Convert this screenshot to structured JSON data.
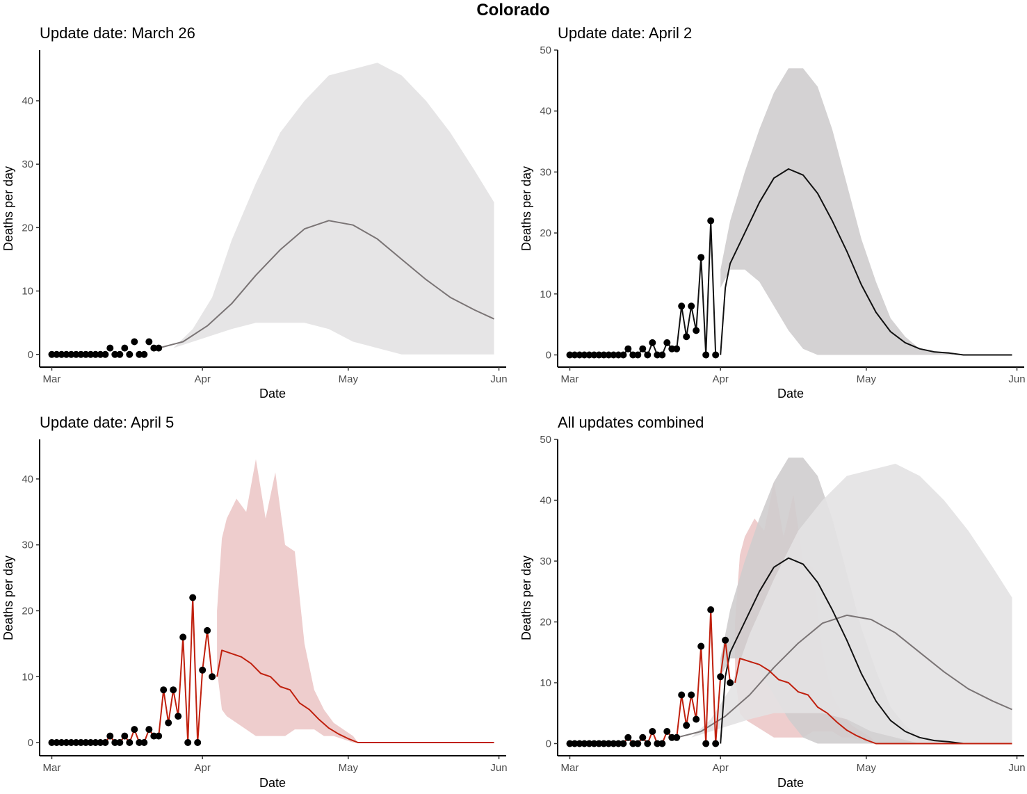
{
  "suptitle": "Colorado",
  "colors": {
    "march26_band": "#e3e2e3",
    "march26_line": "#7a7475",
    "april2_band": "#cfcdce",
    "april2_line": "#111111",
    "april5_band": "#ecc8c8",
    "april5_line": "#c0200e",
    "observed_points": "#000000"
  },
  "chart_data": [
    {
      "type": "line",
      "title": "Update date: March 26",
      "xlabel": "Date",
      "ylabel": "Deaths per day",
      "x_ticks": [
        "Mar",
        "Apr",
        "May",
        "Jun"
      ],
      "y_ticks": [
        0,
        10,
        20,
        30,
        40
      ],
      "ylim": [
        -2,
        48
      ],
      "series": [
        {
          "kind": "band",
          "style": "march26",
          "x": [
            "2020-03-23",
            "2020-03-26",
            "2020-03-30",
            "2020-04-03",
            "2020-04-07",
            "2020-04-12",
            "2020-04-17",
            "2020-04-22",
            "2020-04-27",
            "2020-05-02",
            "2020-05-07",
            "2020-05-12",
            "2020-05-17",
            "2020-05-22",
            "2020-05-27",
            "2020-05-31"
          ],
          "lower": [
            1,
            1,
            2,
            3,
            4,
            5,
            5,
            5,
            4,
            2,
            1,
            0,
            0,
            0,
            0,
            0
          ],
          "upper": [
            1,
            1,
            4,
            9,
            18,
            27,
            35,
            40,
            44,
            45,
            46,
            44,
            40,
            35,
            29,
            24
          ]
        },
        {
          "kind": "line",
          "style": "march26",
          "x": [
            "2020-03-23",
            "2020-03-28",
            "2020-04-02",
            "2020-04-07",
            "2020-04-12",
            "2020-04-17",
            "2020-04-22",
            "2020-04-27",
            "2020-05-02",
            "2020-05-07",
            "2020-05-12",
            "2020-05-17",
            "2020-05-22",
            "2020-05-27",
            "2020-05-31"
          ],
          "y": [
            1.0,
            2.0,
            4.5,
            8.0,
            12.5,
            16.5,
            19.8,
            21.1,
            20.4,
            18.2,
            15.0,
            11.8,
            9.0,
            7.0,
            5.6
          ]
        },
        {
          "kind": "observed",
          "x": [
            "2020-03-01",
            "2020-03-02",
            "2020-03-03",
            "2020-03-04",
            "2020-03-05",
            "2020-03-06",
            "2020-03-07",
            "2020-03-08",
            "2020-03-09",
            "2020-03-10",
            "2020-03-11",
            "2020-03-12",
            "2020-03-13",
            "2020-03-14",
            "2020-03-15",
            "2020-03-16",
            "2020-03-17",
            "2020-03-18",
            "2020-03-19",
            "2020-03-20",
            "2020-03-21",
            "2020-03-22",
            "2020-03-23"
          ],
          "y": [
            0,
            0,
            0,
            0,
            0,
            0,
            0,
            0,
            0,
            0,
            0,
            0,
            1,
            0,
            0,
            1,
            0,
            2,
            0,
            0,
            2,
            1,
            1
          ]
        }
      ]
    },
    {
      "type": "line",
      "title": "Update date: April 2",
      "xlabel": "Date",
      "ylabel": "Deaths per day",
      "x_ticks": [
        "Mar",
        "Apr",
        "May",
        "Jun"
      ],
      "y_ticks": [
        0,
        10,
        20,
        30,
        40,
        50
      ],
      "ylim": [
        -2,
        50
      ],
      "series": [
        {
          "kind": "band",
          "style": "april2",
          "x": [
            "2020-04-01",
            "2020-04-03",
            "2020-04-06",
            "2020-04-09",
            "2020-04-12",
            "2020-04-15",
            "2020-04-18",
            "2020-04-21",
            "2020-04-24",
            "2020-04-27",
            "2020-04-30",
            "2020-05-03",
            "2020-05-06",
            "2020-05-09",
            "2020-05-12",
            "2020-05-15",
            "2020-05-18",
            "2020-05-19"
          ],
          "lower": [
            11,
            14,
            14,
            12,
            8,
            4,
            1,
            0,
            0,
            0,
            0,
            0,
            0,
            0,
            0,
            0,
            0,
            0
          ],
          "upper": [
            14,
            22,
            30,
            37,
            43,
            47,
            47,
            44,
            37,
            28,
            19,
            12,
            6,
            3,
            1,
            0.5,
            0.5,
            0
          ]
        },
        {
          "kind": "line",
          "style": "april2",
          "x": [
            "2020-04-01",
            "2020-04-02",
            "2020-04-03",
            "2020-04-06",
            "2020-04-09",
            "2020-04-12",
            "2020-04-15",
            "2020-04-18",
            "2020-04-21",
            "2020-04-24",
            "2020-04-27",
            "2020-04-30",
            "2020-05-03",
            "2020-05-06",
            "2020-05-09",
            "2020-05-12",
            "2020-05-15",
            "2020-05-18",
            "2020-05-21",
            "2020-05-31"
          ],
          "y": [
            0,
            11,
            15,
            20,
            25,
            29,
            30.5,
            29.5,
            26.5,
            22,
            17,
            11.5,
            7,
            3.8,
            2,
            1,
            0.5,
            0.3,
            0,
            0
          ]
        },
        {
          "kind": "observed",
          "connect": true,
          "x": [
            "2020-03-01",
            "2020-03-02",
            "2020-03-03",
            "2020-03-04",
            "2020-03-05",
            "2020-03-06",
            "2020-03-07",
            "2020-03-08",
            "2020-03-09",
            "2020-03-10",
            "2020-03-11",
            "2020-03-12",
            "2020-03-13",
            "2020-03-14",
            "2020-03-15",
            "2020-03-16",
            "2020-03-17",
            "2020-03-18",
            "2020-03-19",
            "2020-03-20",
            "2020-03-21",
            "2020-03-22",
            "2020-03-23",
            "2020-03-24",
            "2020-03-25",
            "2020-03-26",
            "2020-03-27",
            "2020-03-28",
            "2020-03-29",
            "2020-03-30",
            "2020-03-31"
          ],
          "y": [
            0,
            0,
            0,
            0,
            0,
            0,
            0,
            0,
            0,
            0,
            0,
            0,
            1,
            0,
            0,
            1,
            0,
            2,
            0,
            0,
            2,
            1,
            1,
            8,
            3,
            8,
            4,
            16,
            0,
            22,
            0
          ]
        }
      ]
    },
    {
      "type": "line",
      "title": "Update date: April 5",
      "xlabel": "Date",
      "ylabel": "Deaths per day",
      "x_ticks": [
        "Mar",
        "Apr",
        "May",
        "Jun"
      ],
      "y_ticks": [
        0,
        10,
        20,
        30,
        40
      ],
      "ylim": [
        -2,
        46
      ],
      "series": [
        {
          "kind": "band",
          "style": "april5",
          "x": [
            "2020-04-04",
            "2020-04-05",
            "2020-04-06",
            "2020-04-08",
            "2020-04-10",
            "2020-04-12",
            "2020-04-14",
            "2020-04-16",
            "2020-04-18",
            "2020-04-20",
            "2020-04-22",
            "2020-04-24",
            "2020-04-26",
            "2020-04-28",
            "2020-04-30",
            "2020-05-02",
            "2020-05-03"
          ],
          "lower": [
            11,
            5,
            4,
            3,
            2,
            1,
            1,
            1,
            1,
            2,
            2,
            2,
            1,
            1,
            0.5,
            0,
            0
          ],
          "upper": [
            20,
            31,
            34,
            37,
            35,
            43,
            34,
            41,
            30,
            29,
            15,
            8,
            5,
            3,
            2,
            1,
            0
          ]
        },
        {
          "kind": "line",
          "style": "april5",
          "x": [
            "2020-04-04",
            "2020-04-05",
            "2020-04-07",
            "2020-04-09",
            "2020-04-11",
            "2020-04-13",
            "2020-04-15",
            "2020-04-17",
            "2020-04-19",
            "2020-04-21",
            "2020-04-23",
            "2020-04-25",
            "2020-04-27",
            "2020-04-29",
            "2020-05-01",
            "2020-05-03",
            "2020-05-31"
          ],
          "y": [
            10,
            14,
            13.5,
            13,
            12,
            10.5,
            10,
            8.5,
            8,
            6,
            5,
            3.5,
            2.2,
            1.3,
            0.6,
            0,
            0
          ]
        },
        {
          "kind": "observed",
          "connect": true,
          "x": [
            "2020-03-01",
            "2020-03-02",
            "2020-03-03",
            "2020-03-04",
            "2020-03-05",
            "2020-03-06",
            "2020-03-07",
            "2020-03-08",
            "2020-03-09",
            "2020-03-10",
            "2020-03-11",
            "2020-03-12",
            "2020-03-13",
            "2020-03-14",
            "2020-03-15",
            "2020-03-16",
            "2020-03-17",
            "2020-03-18",
            "2020-03-19",
            "2020-03-20",
            "2020-03-21",
            "2020-03-22",
            "2020-03-23",
            "2020-03-24",
            "2020-03-25",
            "2020-03-26",
            "2020-03-27",
            "2020-03-28",
            "2020-03-29",
            "2020-03-30",
            "2020-03-31",
            "2020-04-01",
            "2020-04-02",
            "2020-04-03"
          ],
          "y": [
            0,
            0,
            0,
            0,
            0,
            0,
            0,
            0,
            0,
            0,
            0,
            0,
            1,
            0,
            0,
            1,
            0,
            2,
            0,
            0,
            2,
            1,
            1,
            8,
            3,
            8,
            4,
            16,
            0,
            22,
            0,
            11,
            17,
            10
          ]
        }
      ]
    },
    {
      "type": "line",
      "title": "All updates combined",
      "xlabel": "Date",
      "ylabel": "Deaths per day",
      "x_ticks": [
        "Mar",
        "Apr",
        "May",
        "Jun"
      ],
      "y_ticks": [
        0,
        10,
        20,
        30,
        40,
        50
      ],
      "ylim": [
        -2,
        50
      ],
      "combined_from": [
        0,
        1,
        2
      ]
    }
  ]
}
